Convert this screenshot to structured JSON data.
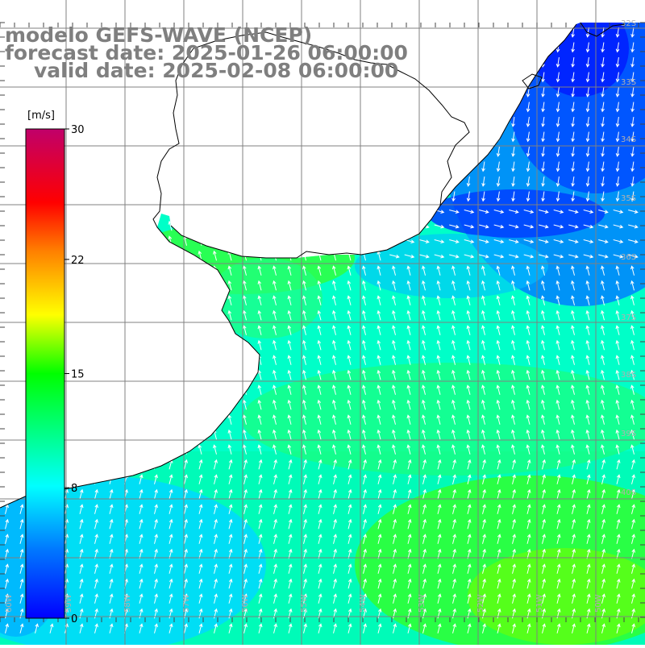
{
  "header": {
    "model_line": "modelo GEFS-WAVE (NCEP)",
    "forecast_line": "forecast date: 2025-01-26 06:00:00",
    "valid_line": "valid date: 2025-02-08 06:00:00"
  },
  "colorbar": {
    "unit_label": "[m/s]",
    "tick_labels": [
      "30",
      "22",
      "15",
      "8",
      "0"
    ],
    "tick_values": [
      30,
      22,
      15,
      8,
      0
    ],
    "range": [
      0,
      30
    ],
    "colors": [
      "#0000ff",
      "#00a0ff",
      "#00ffff",
      "#00ff00",
      "#ffff00",
      "#ff8000",
      "#ff0000",
      "#c0006a"
    ]
  },
  "map": {
    "field": "wind speed",
    "unit": "m/s",
    "lat_labels": [
      "32S",
      "33S",
      "34S",
      "35S",
      "36S",
      "37S",
      "38S",
      "39S",
      "40S"
    ],
    "lon_labels": [
      "60W",
      "59W",
      "58W",
      "57W",
      "56W",
      "55W",
      "54W",
      "53W",
      "52W",
      "51W",
      "50W"
    ],
    "land_color": "#ffffff",
    "grid_color": "#808080",
    "coast_color": "#000000",
    "arrow_color": "#ffffff"
  }
}
